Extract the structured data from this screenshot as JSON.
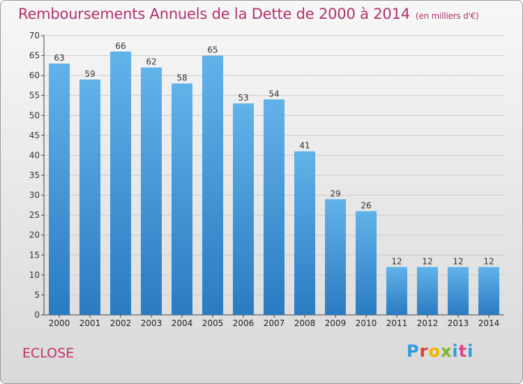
{
  "header": {
    "title": "Remboursements Annuels de la Dette de 2000 à 2014",
    "unit": "(en milliers d'€)"
  },
  "footer": {
    "commune": "ECLOSE",
    "logo_letters": [
      "P",
      "r",
      "o",
      "x",
      "i",
      "t",
      "i"
    ],
    "logo_colors": [
      "#2e9be0",
      "#e23b3b",
      "#f2b500",
      "#79b82c",
      "#2e9be0",
      "#e0478a",
      "#2e9be0"
    ]
  },
  "colors": {
    "bar_top": "#62b2ea",
    "bar_bottom": "#2a7bc1",
    "grid": "#cccccc",
    "title": "#b2306f"
  },
  "chart_data": {
    "type": "bar",
    "title": "Remboursements Annuels de la Dette de 2000 à 2014",
    "subtitle": "(en milliers d'€)",
    "xlabel": "",
    "ylabel": "",
    "categories": [
      "2000",
      "2001",
      "2002",
      "2003",
      "2004",
      "2005",
      "2006",
      "2007",
      "2008",
      "2009",
      "2010",
      "2011",
      "2012",
      "2013",
      "2014"
    ],
    "values": [
      63,
      59,
      66,
      62,
      58,
      65,
      53,
      54,
      41,
      29,
      26,
      12,
      12,
      12,
      12
    ],
    "ylim": [
      0,
      70
    ],
    "yticks": [
      0,
      5,
      10,
      15,
      20,
      25,
      30,
      35,
      40,
      45,
      50,
      55,
      60,
      65,
      70
    ],
    "grid": true,
    "legend": "none"
  }
}
